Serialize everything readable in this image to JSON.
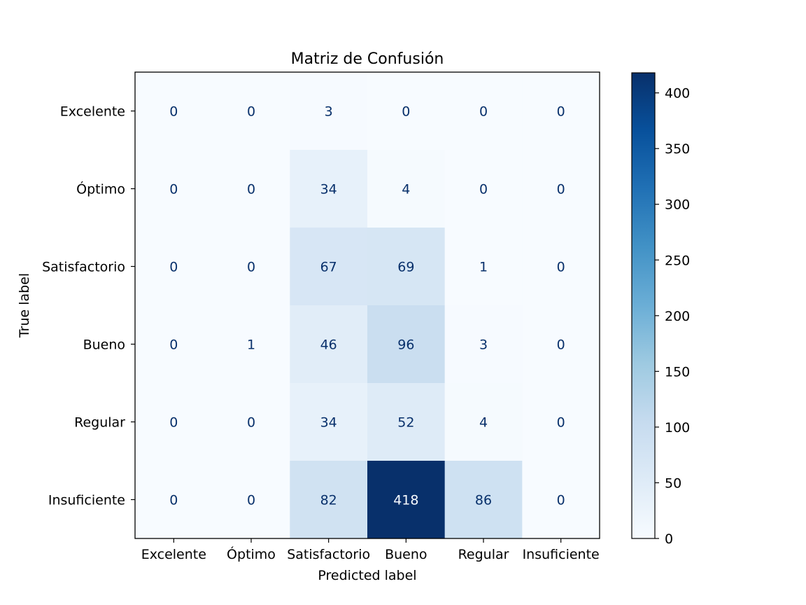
{
  "chart_data": {
    "type": "heatmap",
    "title": "Matriz de Confusión",
    "xlabel": "Predicted label",
    "ylabel": "True label",
    "x_categories": [
      "Excelente",
      "Óptimo",
      "Satisfactorio",
      "Bueno",
      "Regular",
      "Insuficiente"
    ],
    "y_categories": [
      "Excelente",
      "Óptimo",
      "Satisfactorio",
      "Bueno",
      "Regular",
      "Insuficiente"
    ],
    "values": [
      [
        0,
        0,
        3,
        0,
        0,
        0
      ],
      [
        0,
        0,
        34,
        4,
        0,
        0
      ],
      [
        0,
        0,
        67,
        69,
        1,
        0
      ],
      [
        0,
        1,
        46,
        96,
        3,
        0
      ],
      [
        0,
        0,
        34,
        52,
        4,
        0
      ],
      [
        0,
        0,
        82,
        418,
        86,
        0
      ]
    ],
    "colormap": "Blues",
    "vmin": 0,
    "vmax": 418,
    "colorbar_ticks": [
      0,
      50,
      100,
      150,
      200,
      250,
      300,
      350,
      400
    ],
    "label_color_dark": "#08306b",
    "label_color_light": "#f7fbff"
  }
}
